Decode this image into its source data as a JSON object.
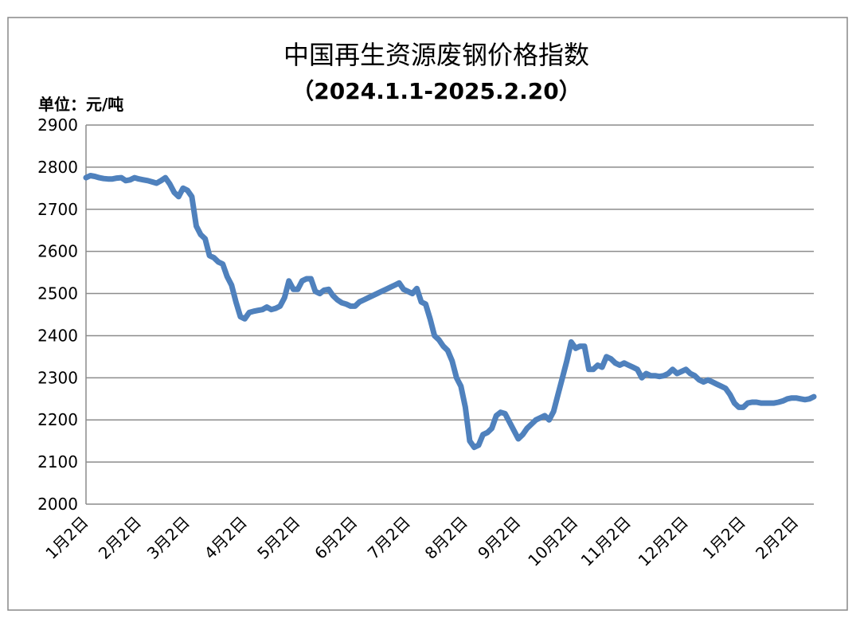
{
  "chart_data": {
    "type": "line",
    "title": "中国再生资源废钢价格指数",
    "subtitle": "（2024.1.1-2025.2.20）",
    "y_label": "单位：元/吨",
    "categories": [
      "1月2日",
      null,
      null,
      null,
      null,
      null,
      null,
      null,
      null,
      null,
      null,
      null,
      "2月2日",
      null,
      null,
      null,
      null,
      null,
      null,
      null,
      null,
      null,
      null,
      "3月2日",
      null,
      null,
      null,
      null,
      null,
      null,
      null,
      null,
      null,
      null,
      null,
      null,
      "4月2日",
      null,
      null,
      null,
      null,
      null,
      null,
      null,
      null,
      null,
      null,
      null,
      "5月2日",
      null,
      null,
      null,
      null,
      null,
      null,
      null,
      null,
      null,
      null,
      null,
      null,
      "6月2日",
      null,
      null,
      null,
      null,
      null,
      null,
      null,
      null,
      null,
      null,
      null,
      "7月2日",
      null,
      null,
      null,
      null,
      null,
      null,
      null,
      null,
      null,
      null,
      null,
      null,
      "8月2日",
      null,
      null,
      null,
      null,
      null,
      null,
      null,
      null,
      null,
      null,
      null,
      "9月2日",
      null,
      null,
      null,
      null,
      null,
      null,
      null,
      null,
      null,
      null,
      null,
      null,
      "10月2日",
      null,
      null,
      null,
      null,
      null,
      null,
      null,
      null,
      null,
      null,
      null,
      "11月2日",
      null,
      null,
      null,
      null,
      null,
      null,
      null,
      null,
      null,
      null,
      null,
      null,
      "12月2日",
      null,
      null,
      null,
      null,
      null,
      null,
      null,
      null,
      null,
      null,
      null,
      null,
      "1月2日",
      null,
      null,
      null,
      null,
      null,
      null,
      null,
      null,
      null,
      null,
      null,
      "2月2日",
      null,
      null,
      null,
      null
    ],
    "series": [
      {
        "name": "废钢价格指数",
        "color": "#4f81bd",
        "values": [
          2775,
          2780,
          2778,
          2775,
          2773,
          2772,
          2772,
          2774,
          2775,
          2768,
          2770,
          2775,
          2772,
          2770,
          2768,
          2765,
          2762,
          2768,
          2775,
          2760,
          2740,
          2730,
          2750,
          2745,
          2730,
          2660,
          2640,
          2630,
          2590,
          2585,
          2575,
          2570,
          2540,
          2520,
          2480,
          2445,
          2440,
          2455,
          2458,
          2460,
          2462,
          2468,
          2462,
          2465,
          2470,
          2490,
          2530,
          2510,
          2510,
          2530,
          2535,
          2535,
          2505,
          2500,
          2508,
          2510,
          2495,
          2485,
          2478,
          2475,
          2470,
          2470,
          2480,
          2485,
          2490,
          2495,
          2500,
          2505,
          2510,
          2515,
          2520,
          2525,
          2510,
          2505,
          2500,
          2512,
          2480,
          2475,
          2440,
          2400,
          2390,
          2375,
          2365,
          2340,
          2300,
          2280,
          2230,
          2150,
          2135,
          2140,
          2165,
          2170,
          2180,
          2210,
          2218,
          2215,
          2195,
          2175,
          2155,
          2165,
          2180,
          2190,
          2200,
          2205,
          2210,
          2200,
          2220,
          2260,
          2300,
          2340,
          2385,
          2370,
          2375,
          2375,
          2320,
          2320,
          2330,
          2325,
          2350,
          2345,
          2335,
          2330,
          2335,
          2330,
          2325,
          2320,
          2300,
          2310,
          2305,
          2305,
          2303,
          2305,
          2310,
          2320,
          2310,
          2315,
          2320,
          2310,
          2305,
          2295,
          2290,
          2295,
          2290,
          2285,
          2280,
          2275,
          2260,
          2240,
          2230,
          2230,
          2240,
          2242,
          2242,
          2240,
          2240,
          2240,
          2240,
          2242,
          2245,
          2250,
          2252,
          2252,
          2250,
          2248,
          2250,
          2255
        ]
      }
    ],
    "ylim": [
      2000,
      2900
    ],
    "yticks": [
      2000,
      2100,
      2200,
      2300,
      2400,
      2500,
      2600,
      2700,
      2800,
      2900
    ],
    "grid": true,
    "legend": false
  }
}
